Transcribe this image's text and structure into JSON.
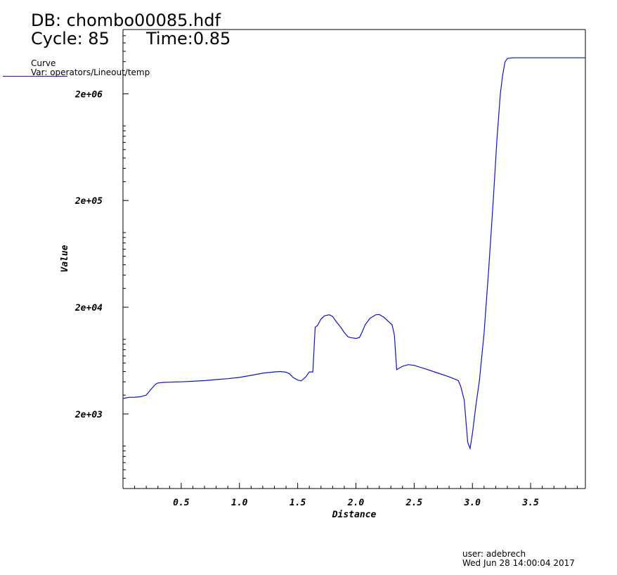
{
  "header": {
    "db": "DB: chombo00085.hdf",
    "cycle": "Cycle: 85",
    "time": "Time:0.85"
  },
  "legend": {
    "title": "Curve",
    "var": "Var: operators/Lineout/temp",
    "line_color": "#1010c8"
  },
  "footer": {
    "user": "user: adebrech",
    "date": "Wed Jun 28 14:00:04 2017"
  },
  "chart_data": {
    "type": "line",
    "xlabel": "Distance",
    "ylabel": "Value",
    "xlim": [
      0,
      3.97
    ],
    "ylim": [
      400,
      8000000
    ],
    "log_y": true,
    "grid": false,
    "x_ticks": [
      0.5,
      1.0,
      1.5,
      2.0,
      2.5,
      3.0,
      3.5
    ],
    "x_tick_labels": [
      "0.5",
      "1.0",
      "1.5",
      "2.0",
      "2.5",
      "3.0",
      "3.5"
    ],
    "y_ticks": [
      2000,
      20000,
      200000,
      2000000
    ],
    "y_tick_labels": [
      "2e+03",
      "2e+04",
      "2e+05",
      "2e+06"
    ],
    "series": [
      {
        "color": "#1010c8",
        "x": [
          0.0,
          0.05,
          0.1,
          0.15,
          0.2,
          0.22,
          0.25,
          0.28,
          0.3,
          0.35,
          0.4,
          0.5,
          0.6,
          0.7,
          0.8,
          0.9,
          1.0,
          1.1,
          1.2,
          1.3,
          1.35,
          1.4,
          1.43,
          1.46,
          1.5,
          1.53,
          1.57,
          1.6,
          1.63,
          1.65,
          1.67,
          1.7,
          1.73,
          1.77,
          1.8,
          1.83,
          1.87,
          1.9,
          1.93,
          1.95,
          2.0,
          2.03,
          2.05,
          2.08,
          2.12,
          2.17,
          2.2,
          2.24,
          2.28,
          2.31,
          2.33,
          2.35,
          2.4,
          2.45,
          2.5,
          2.6,
          2.7,
          2.8,
          2.88,
          2.9,
          2.93,
          2.96,
          2.98,
          3.0,
          3.03,
          3.06,
          3.1,
          3.14,
          3.18,
          3.21,
          3.24,
          3.26,
          3.28,
          3.3,
          3.35,
          3.5,
          3.97
        ],
        "y": [
          2790,
          2860,
          2870,
          2900,
          3000,
          3200,
          3500,
          3800,
          3900,
          3950,
          3970,
          4000,
          4050,
          4100,
          4200,
          4280,
          4400,
          4600,
          4820,
          4950,
          5000,
          4920,
          4750,
          4400,
          4150,
          4080,
          4450,
          4950,
          4950,
          13000,
          13500,
          15500,
          16600,
          17000,
          16400,
          14700,
          13000,
          11600,
          10600,
          10400,
          10200,
          10400,
          11500,
          13700,
          15700,
          17000,
          17100,
          16100,
          14700,
          13700,
          11000,
          5200,
          5600,
          5800,
          5700,
          5280,
          4850,
          4450,
          4100,
          3600,
          2700,
          1080,
          950,
          1300,
          2400,
          4100,
          11300,
          45000,
          210000,
          720000,
          2000000,
          3000000,
          3970000,
          4280000,
          4350000,
          4350000,
          4350000
        ]
      }
    ]
  }
}
